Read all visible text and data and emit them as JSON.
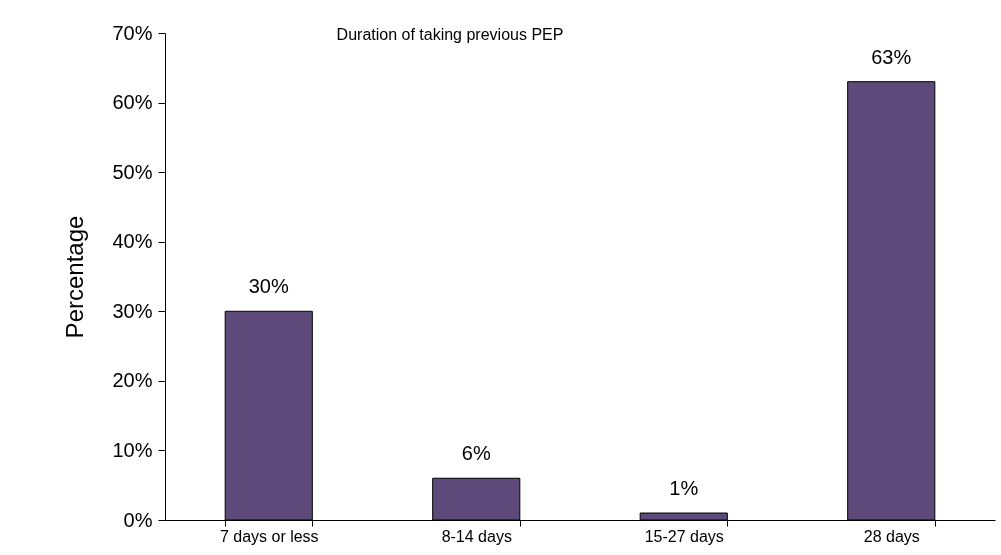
{
  "chart_data": {
    "type": "bar",
    "title": "Duration of taking previous PEP",
    "ylabel": "Percentage",
    "categories": [
      "7 days or less",
      "8-14 days",
      "15-27 days",
      "28 days"
    ],
    "values": [
      30,
      6,
      1,
      63
    ],
    "value_labels": [
      "30%",
      "6%",
      "1%",
      "63%"
    ],
    "color": "#5e4a7a",
    "ylim": [
      0,
      70
    ],
    "yticks": [
      {
        "value": 0,
        "label": "0%"
      },
      {
        "value": 10,
        "label": "10%"
      },
      {
        "value": 20,
        "label": "20%"
      },
      {
        "value": 30,
        "label": "30%"
      },
      {
        "value": 40,
        "label": "40%"
      },
      {
        "value": 50,
        "label": "50%"
      },
      {
        "value": 60,
        "label": "60%"
      },
      {
        "value": 70,
        "label": "70%"
      }
    ],
    "grid": false
  }
}
